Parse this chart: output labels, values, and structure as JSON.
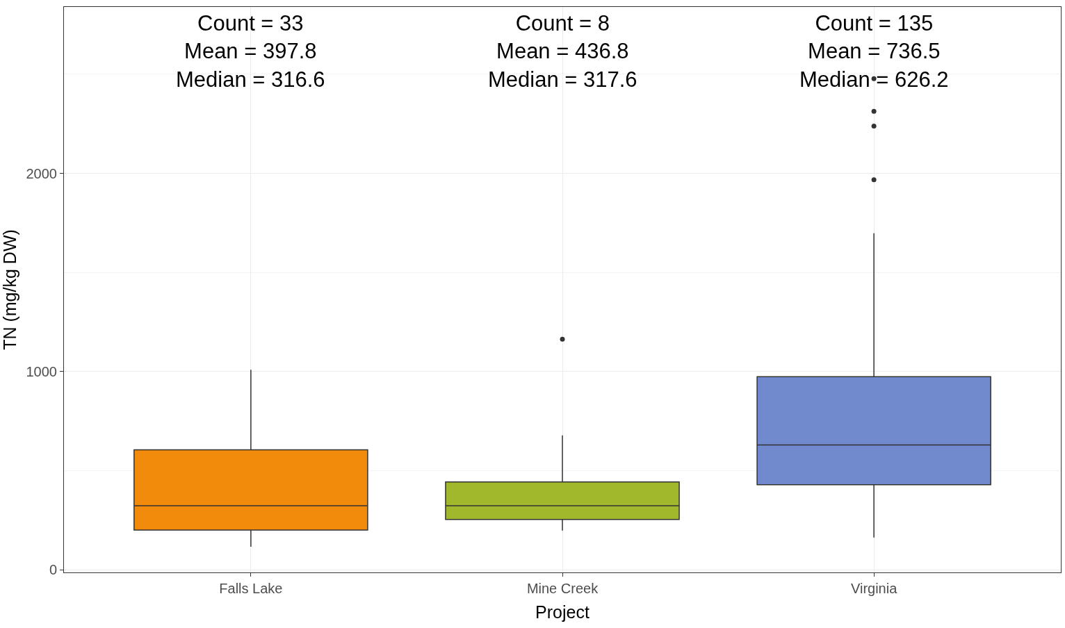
{
  "chart_data": {
    "type": "box",
    "xlabel": "Project",
    "ylabel": "TN (mg/kg DW)",
    "categories": [
      "Falls Lake",
      "Mine Creek",
      "Virginia"
    ],
    "colors": [
      "#f28b0c",
      "#a2b82c",
      "#7189cd"
    ],
    "boxes": [
      {
        "low": 116,
        "q1": 200,
        "median": 323,
        "q3": 605,
        "high": 1009
      },
      {
        "low": 197,
        "q1": 253,
        "median": 323,
        "q3": 443,
        "high": 678,
        "outliers": [
          1163
        ]
      },
      {
        "low": 162,
        "q1": 429,
        "median": 629,
        "q3": 974,
        "high": 1698,
        "outliers": [
          1968,
          2239,
          2313,
          2478
        ]
      }
    ],
    "ylim": [
      -14,
      2840
    ],
    "yticks": [
      0,
      1000,
      2000
    ],
    "grid": true,
    "annotations": [
      "Count = 33\nMean = 397.8\nMedian = 316.6",
      "Count = 8\nMean = 436.8\nMedian = 317.6",
      "Count = 135\nMean = 736.5\nMedian = 626.2"
    ]
  }
}
